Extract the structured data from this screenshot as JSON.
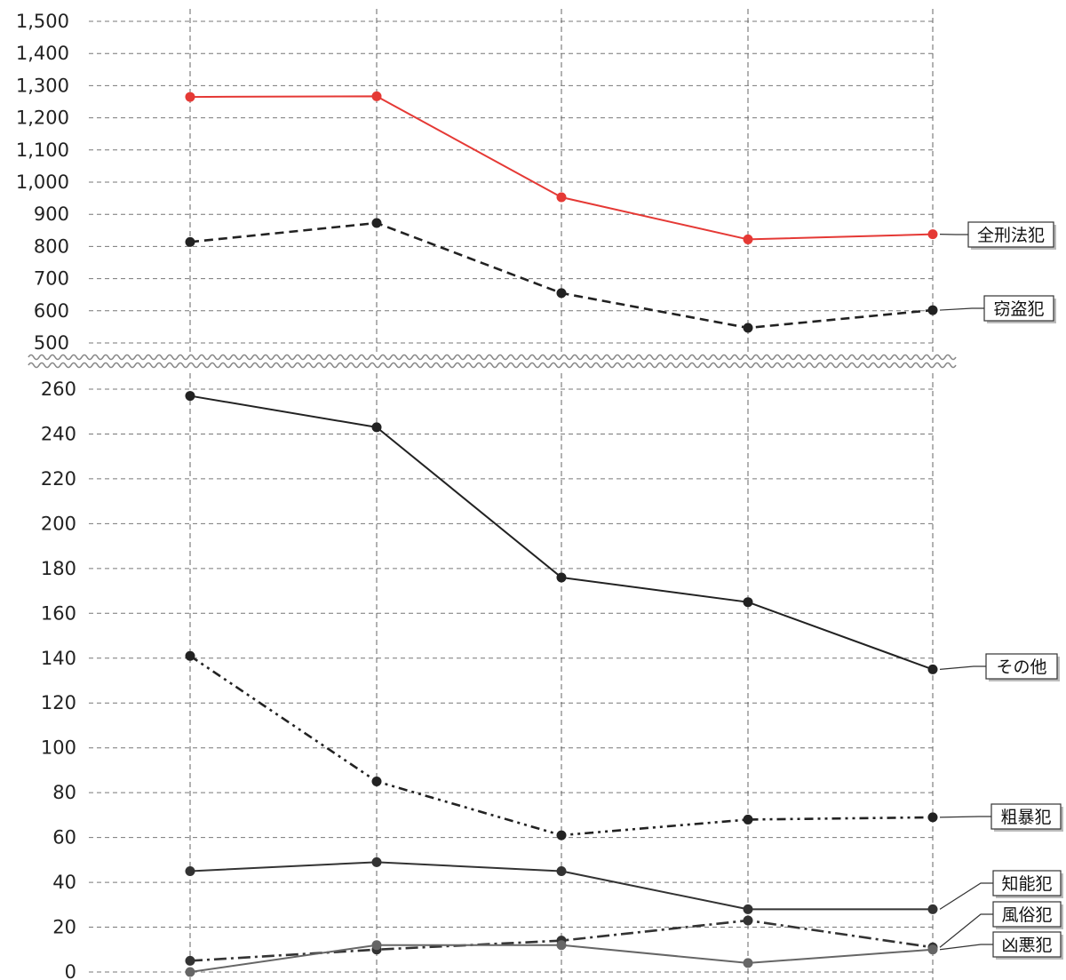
{
  "chart_data": [
    {
      "type": "line",
      "panel": "upper",
      "ylim": [
        500,
        1500
      ],
      "y_ticks": [
        "1,500",
        "1,400",
        "1,300",
        "1,200",
        "1,100",
        "1,000",
        "900",
        "800",
        "700",
        "600",
        "500"
      ],
      "x_points": 5,
      "grid": true,
      "series": [
        {
          "name": "全刑法犯",
          "color": "#e53935",
          "style": "solid",
          "values": [
            1265,
            1267,
            953,
            822,
            838
          ]
        },
        {
          "name": "窃盗犯",
          "color": "#222222",
          "style": "dashed",
          "values": [
            814,
            873,
            655,
            547,
            602
          ]
        }
      ]
    },
    {
      "type": "line",
      "panel": "lower",
      "ylim": [
        0,
        260
      ],
      "y_ticks": [
        "260",
        "240",
        "220",
        "200",
        "180",
        "160",
        "140",
        "120",
        "100",
        "80",
        "60",
        "40",
        "20",
        "0"
      ],
      "x_points": 5,
      "grid": true,
      "series": [
        {
          "name": "その他",
          "color": "#222222",
          "style": "solid",
          "values": [
            257,
            243,
            176,
            165,
            135
          ]
        },
        {
          "name": "粗暴犯",
          "color": "#222222",
          "style": "dash-dot-dot",
          "values": [
            141,
            85,
            61,
            68,
            69
          ]
        },
        {
          "name": "知能犯",
          "color": "#333333",
          "style": "solid",
          "values": [
            45,
            49,
            45,
            28,
            28
          ]
        },
        {
          "name": "風俗犯",
          "color": "#333333",
          "style": "dash-dot",
          "values": [
            5,
            10,
            14,
            23,
            11
          ]
        },
        {
          "name": "凶悪犯",
          "color": "#666666",
          "style": "solid",
          "values": [
            0,
            12,
            12,
            4,
            10
          ]
        }
      ]
    }
  ]
}
